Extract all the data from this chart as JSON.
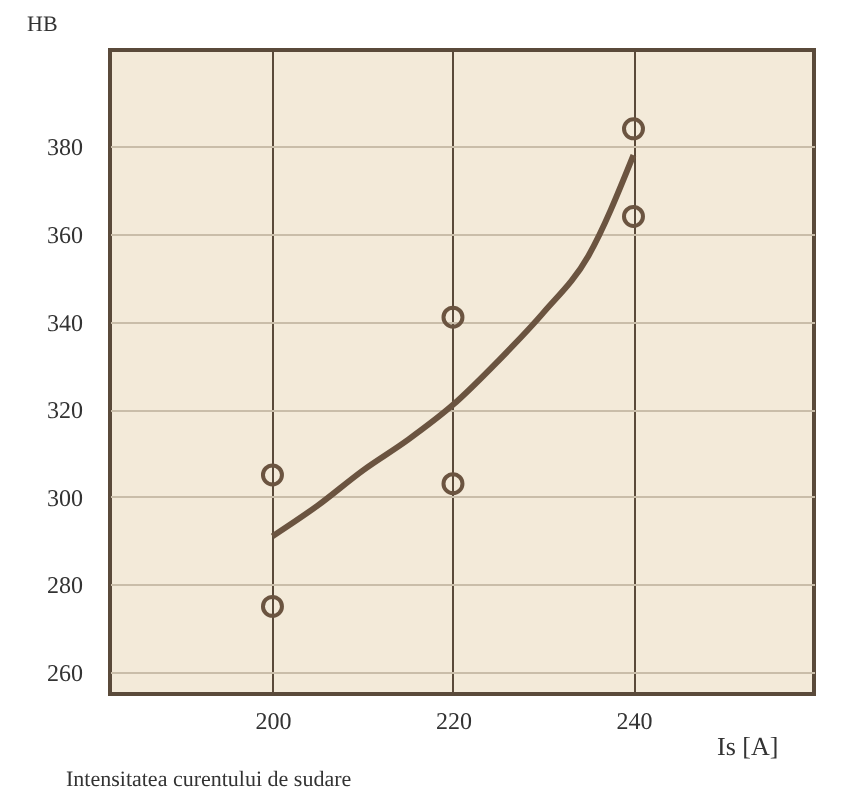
{
  "chart_data": {
    "type": "scatter",
    "xlabel": "Is [A]",
    "ylabel": "HB",
    "annotations": [
      "Intensitatea curentului de sudare"
    ],
    "xlim": [
      182,
      260
    ],
    "xticks": [
      200,
      220,
      240
    ],
    "ylim": [
      255,
      402
    ],
    "yticks": [
      260,
      280,
      300,
      320,
      340,
      360,
      380
    ],
    "grid": true,
    "marker": "circle",
    "series": [
      {
        "color": "#6b5440",
        "x": [
          200,
          200,
          220,
          220,
          240,
          240
        ],
        "values": [
          305,
          275,
          341,
          303,
          384,
          364
        ]
      },
      {
        "type": "line",
        "color": "#6b5440",
        "line_style": "solid",
        "marker": "none",
        "x": [
          200,
          205,
          210,
          215,
          220,
          225,
          230,
          235,
          240
        ],
        "values": [
          291,
          298,
          306,
          313,
          321,
          331,
          342,
          355,
          378
        ]
      }
    ]
  }
}
